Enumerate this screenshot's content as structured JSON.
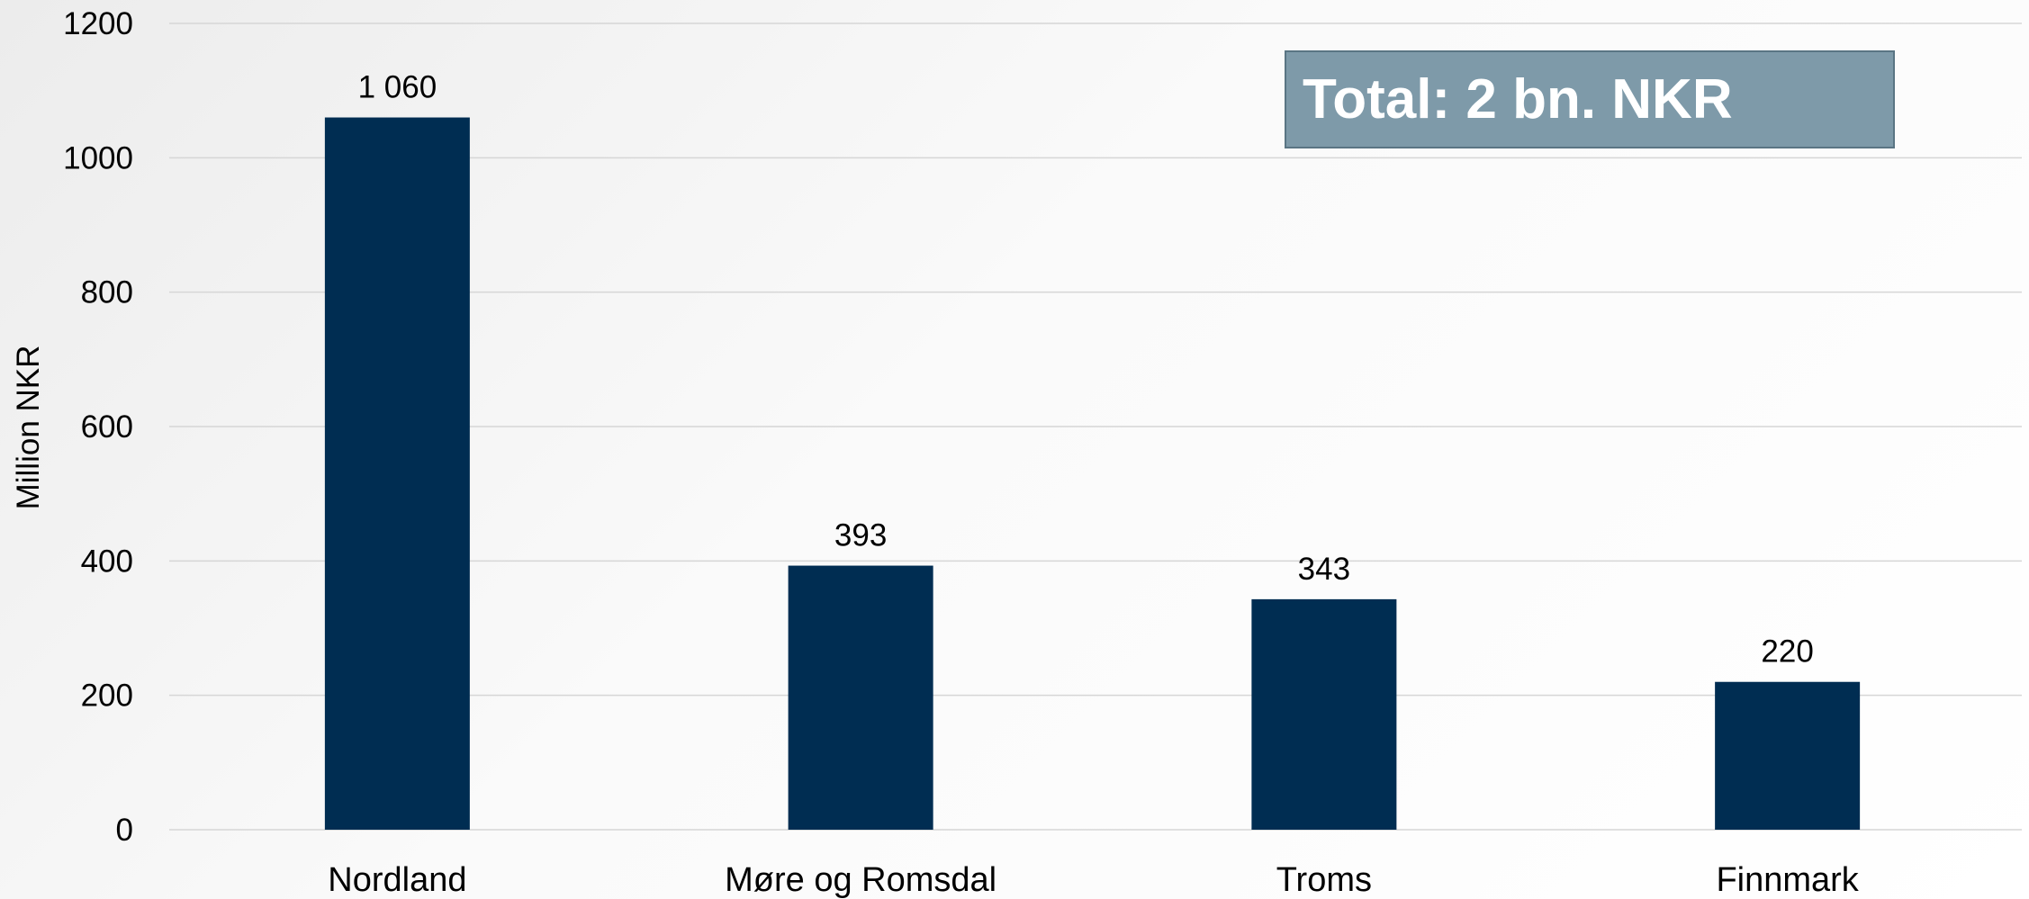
{
  "chart_data": {
    "type": "bar",
    "categories": [
      "Nordland",
      "Møre og Romsdal",
      "Troms",
      "Finnmark"
    ],
    "values": [
      1060,
      393,
      343,
      220
    ],
    "data_labels": [
      "1 060",
      "393",
      "343",
      "220"
    ],
    "ylabel": "Million NKR",
    "ylim": [
      0,
      1200
    ],
    "yticks": [
      0,
      200,
      400,
      600,
      800,
      1000,
      1200
    ],
    "grid": true,
    "bar_color": "#002d52"
  },
  "annotation": {
    "text": "Total: 2 bn. NKR",
    "background_color": "#7e9aa9",
    "text_color": "#ffffff"
  }
}
